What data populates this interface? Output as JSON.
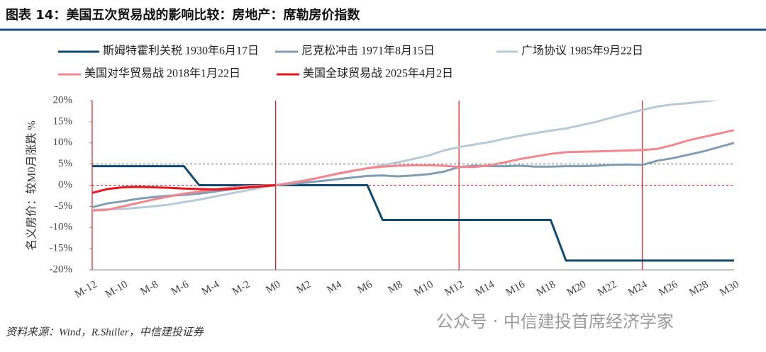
{
  "chart_data": {
    "type": "line",
    "title": "图表 14：美国五次贸易战的影响比较：房地产：席勒房价指数",
    "y_label": "名义房价：较M0月涨跌 %",
    "source": "资料来源：Wind，R.Shiller，中信建投证券",
    "watermark": "公众号 · 中信建投首席经济学家",
    "categories": [
      "M-12",
      null,
      "M-10",
      null,
      "M-8",
      null,
      "M-6",
      null,
      "M-4",
      null,
      "M-2",
      null,
      "M0",
      null,
      "M2",
      null,
      "M4",
      null,
      "M6",
      null,
      "M8",
      null,
      "M10",
      null,
      "M12",
      null,
      "M14",
      null,
      "M16",
      null,
      "M18",
      null,
      "M20",
      null,
      "M22",
      null,
      "M24",
      null,
      "M26",
      null,
      "M28",
      null,
      "M30"
    ],
    "ylim": [
      -20,
      20
    ],
    "yticks": [
      {
        "value": -20,
        "label": "-20%"
      },
      {
        "value": -15,
        "label": "-15%"
      },
      {
        "value": -10,
        "label": "-10%"
      },
      {
        "value": -5,
        "label": "-5%"
      },
      {
        "value": 0,
        "label": "0%"
      },
      {
        "value": 5,
        "label": "5%"
      },
      {
        "value": 10,
        "label": "10%"
      },
      {
        "value": 15,
        "label": "15%"
      },
      {
        "value": 20,
        "label": "20%"
      }
    ],
    "vlines": [
      "M-12",
      "M0",
      "M12",
      "M24"
    ],
    "vline_color": "#e8141b",
    "hlines": [
      {
        "value": 0,
        "color": "#e8141b"
      },
      {
        "value": 5,
        "color": "#555555"
      }
    ],
    "grid": false,
    "series": [
      {
        "name": "斯姆特霍利关税 1930年6月17日",
        "color": "#0e4a72",
        "values": [
          4.5,
          4.5,
          4.5,
          4.5,
          4.5,
          4.5,
          4.5,
          0,
          0,
          0,
          0,
          0,
          0,
          0,
          0,
          0,
          0,
          0,
          0,
          -8.2,
          -8.2,
          -8.2,
          -8.2,
          -8.2,
          -8.2,
          -8.2,
          -8.2,
          -8.2,
          -8.2,
          -8.2,
          -8.2,
          -17.8,
          -17.8,
          -17.8,
          -17.8,
          -17.8,
          -17.8,
          -17.8,
          -17.8,
          -17.8,
          -17.8,
          -17.8,
          -17.8
        ]
      },
      {
        "name": "尼克松冲击 1971年8月15日",
        "color": "#7f9db5",
        "values": [
          -5.2,
          -4.3,
          -3.8,
          -3.2,
          -2.8,
          -2.5,
          -2.3,
          -2.0,
          -1.5,
          -1.0,
          -0.5,
          -0.2,
          0,
          0.3,
          0.6,
          1.0,
          1.4,
          1.8,
          2.2,
          2.3,
          2.1,
          2.3,
          2.6,
          3.2,
          4.3,
          4.6,
          4.5,
          4.5,
          4.6,
          4.4,
          4.4,
          4.5,
          4.5,
          4.6,
          4.8,
          4.9,
          4.8,
          5.8,
          6.4,
          7.2,
          8.0,
          9.0,
          10.0
        ]
      },
      {
        "name": "广场协议 1985年9月22日",
        "color": "#b7cad9",
        "values": [
          -5.8,
          -5.7,
          -5.6,
          -5.3,
          -5.0,
          -4.6,
          -4.0,
          -3.4,
          -2.7,
          -2.0,
          -1.3,
          -0.6,
          0,
          0.6,
          1.2,
          1.9,
          2.6,
          3.3,
          4.0,
          4.7,
          5.4,
          6.2,
          7.0,
          8.2,
          9.0,
          9.6,
          10.2,
          11.0,
          11.7,
          12.3,
          12.9,
          13.4,
          14.2,
          15.0,
          16.0,
          16.9,
          17.8,
          18.6,
          19.1,
          19.4,
          19.8,
          20.2,
          20.6
        ]
      },
      {
        "name": "美国对华贸易战 2018年1月22日",
        "color": "#f4868d",
        "values": [
          -6.0,
          -5.8,
          -5.0,
          -4.2,
          -3.4,
          -2.7,
          -2.0,
          -1.5,
          -1.0,
          -0.6,
          -0.3,
          -0.1,
          0,
          0.5,
          1.1,
          1.9,
          2.7,
          3.4,
          4.0,
          4.4,
          4.6,
          4.7,
          4.7,
          4.6,
          4.3,
          4.3,
          4.7,
          5.4,
          6.2,
          6.8,
          7.4,
          7.8,
          7.9,
          8.0,
          8.1,
          8.2,
          8.3,
          8.6,
          9.5,
          10.6,
          11.4,
          12.2,
          13.0
        ]
      },
      {
        "name": "美国全球贸易战 2025年4月2日",
        "color": "#e8141b",
        "values": [
          -1.8,
          -0.9,
          -0.5,
          -0.4,
          -0.5,
          -0.6,
          -0.8,
          -0.9,
          -1.0,
          -0.9,
          -0.6,
          -0.3,
          0,
          null,
          null,
          null,
          null,
          null,
          null,
          null,
          null,
          null,
          null,
          null,
          null,
          null,
          null,
          null,
          null,
          null,
          null,
          null,
          null,
          null,
          null,
          null,
          null,
          null,
          null,
          null,
          null,
          null,
          null
        ]
      }
    ]
  }
}
